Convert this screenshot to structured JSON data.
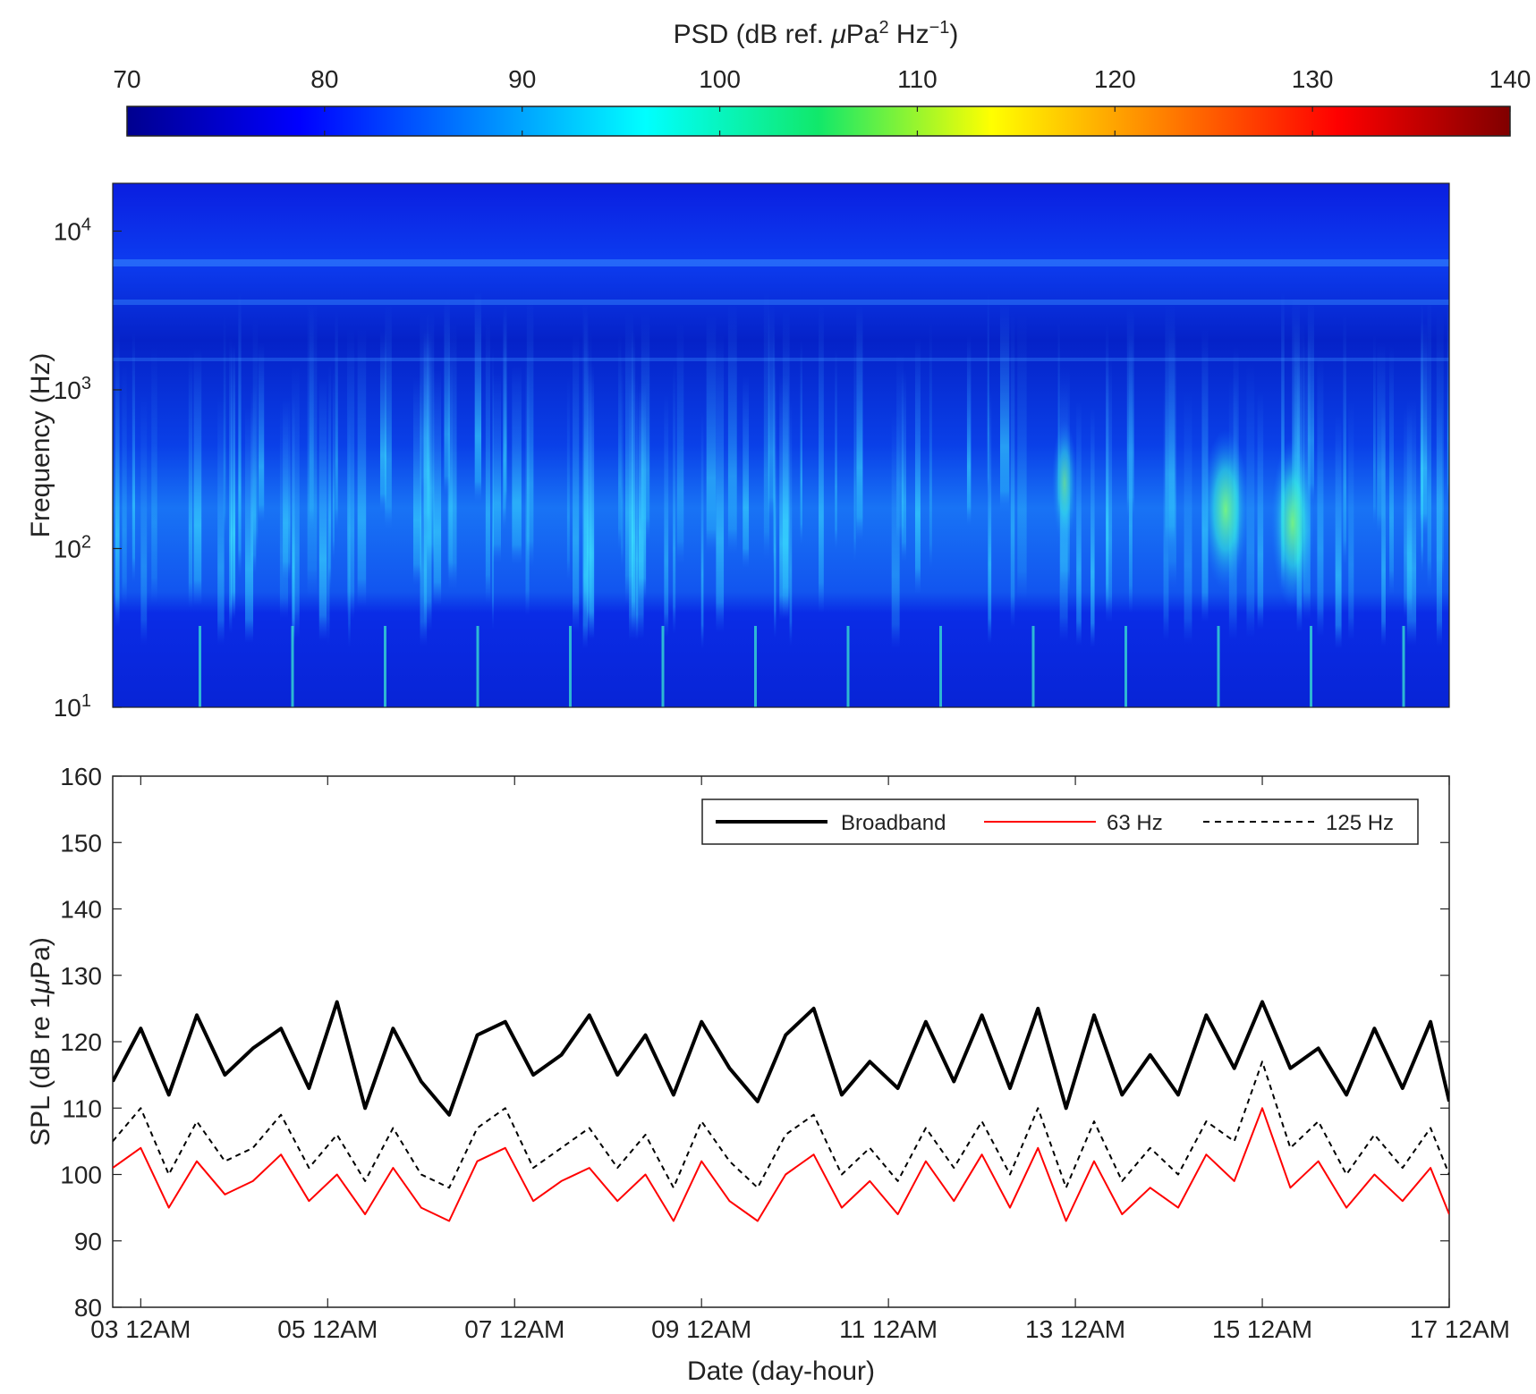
{
  "colorbar": {
    "label_prefix": "PSD (dB ref. ",
    "label_mu": "μ",
    "label_pa": "Pa",
    "label_sup2": "2",
    "label_hz": " Hz",
    "label_supm1": "−1",
    "label_suffix": ")",
    "ticks": [
      "70",
      "80",
      "90",
      "100",
      "110",
      "120",
      "130",
      "140"
    ],
    "range": [
      70,
      140
    ],
    "colormap": "jet"
  },
  "spectrogram": {
    "ylabel": "Frequency (Hz)",
    "ytick_base": "10",
    "ytick_exponents": [
      "1",
      "2",
      "3",
      "4"
    ],
    "freq_range_hz": [
      10,
      20000
    ],
    "scale": "log"
  },
  "chart_data": {
    "type": "line",
    "xlabel": "Date (day-hour)",
    "ylabel_prefix": "SPL (dB re 1",
    "ylabel_mu": "μ",
    "ylabel_suffix": "Pa)",
    "xtick_labels": [
      "03 12AM",
      "05 12AM",
      "07 12AM",
      "09 12AM",
      "11 12AM",
      "13 12AM",
      "15 12AM",
      "17 12AM"
    ],
    "x_range_days": [
      2.7,
      17.0
    ],
    "ylim": [
      80,
      160
    ],
    "ytick_labels": [
      "80",
      "90",
      "100",
      "110",
      "120",
      "130",
      "140",
      "150",
      "160"
    ],
    "legend_position": "top-right",
    "series": [
      {
        "name": "Broadband",
        "color": "#000000",
        "style": "solid-thick",
        "x": [
          2.7,
          3.0,
          3.3,
          3.6,
          3.9,
          4.2,
          4.5,
          4.8,
          5.1,
          5.4,
          5.7,
          6.0,
          6.3,
          6.6,
          6.9,
          7.2,
          7.5,
          7.8,
          8.1,
          8.4,
          8.7,
          9.0,
          9.3,
          9.6,
          9.9,
          10.2,
          10.5,
          10.8,
          11.1,
          11.4,
          11.7,
          12.0,
          12.3,
          12.6,
          12.9,
          13.2,
          13.5,
          13.8,
          14.1,
          14.4,
          14.7,
          15.0,
          15.3,
          15.6,
          15.9,
          16.2,
          16.5,
          16.8,
          17.0
        ],
        "y": [
          114,
          122,
          112,
          124,
          115,
          119,
          122,
          113,
          126,
          110,
          122,
          114,
          109,
          121,
          123,
          115,
          118,
          124,
          115,
          121,
          112,
          123,
          116,
          111,
          121,
          125,
          112,
          117,
          113,
          123,
          114,
          124,
          113,
          125,
          110,
          124,
          112,
          118,
          112,
          124,
          116,
          126,
          116,
          119,
          112,
          122,
          113,
          123,
          111
        ]
      },
      {
        "name": "63 Hz",
        "color": "#ff0000",
        "style": "solid-thin",
        "x": [
          2.7,
          3.0,
          3.3,
          3.6,
          3.9,
          4.2,
          4.5,
          4.8,
          5.1,
          5.4,
          5.7,
          6.0,
          6.3,
          6.6,
          6.9,
          7.2,
          7.5,
          7.8,
          8.1,
          8.4,
          8.7,
          9.0,
          9.3,
          9.6,
          9.9,
          10.2,
          10.5,
          10.8,
          11.1,
          11.4,
          11.7,
          12.0,
          12.3,
          12.6,
          12.9,
          13.2,
          13.5,
          13.8,
          14.1,
          14.4,
          14.7,
          15.0,
          15.3,
          15.6,
          15.9,
          16.2,
          16.5,
          16.8,
          17.0
        ],
        "y": [
          101,
          104,
          95,
          102,
          97,
          99,
          103,
          96,
          100,
          94,
          101,
          95,
          93,
          102,
          104,
          96,
          99,
          101,
          96,
          100,
          93,
          102,
          96,
          93,
          100,
          103,
          95,
          99,
          94,
          102,
          96,
          103,
          95,
          104,
          93,
          102,
          94,
          98,
          95,
          103,
          99,
          110,
          98,
          102,
          95,
          100,
          96,
          101,
          94
        ]
      },
      {
        "name": "125 Hz",
        "color": "#000000",
        "style": "dashed",
        "x": [
          2.7,
          3.0,
          3.3,
          3.6,
          3.9,
          4.2,
          4.5,
          4.8,
          5.1,
          5.4,
          5.7,
          6.0,
          6.3,
          6.6,
          6.9,
          7.2,
          7.5,
          7.8,
          8.1,
          8.4,
          8.7,
          9.0,
          9.3,
          9.6,
          9.9,
          10.2,
          10.5,
          10.8,
          11.1,
          11.4,
          11.7,
          12.0,
          12.3,
          12.6,
          12.9,
          13.2,
          13.5,
          13.8,
          14.1,
          14.4,
          14.7,
          15.0,
          15.3,
          15.6,
          15.9,
          16.2,
          16.5,
          16.8,
          17.0
        ],
        "y": [
          105,
          110,
          100,
          108,
          102,
          104,
          109,
          101,
          106,
          99,
          107,
          100,
          98,
          107,
          110,
          101,
          104,
          107,
          101,
          106,
          98,
          108,
          102,
          98,
          106,
          109,
          100,
          104,
          99,
          107,
          101,
          108,
          100,
          110,
          98,
          108,
          99,
          104,
          100,
          108,
          105,
          117,
          104,
          108,
          100,
          106,
          101,
          107,
          100
        ]
      }
    ]
  }
}
